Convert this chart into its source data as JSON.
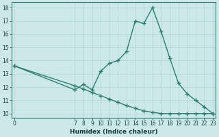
{
  "x_main": [
    0,
    7,
    8,
    9,
    10,
    11,
    12,
    13,
    14,
    15,
    16,
    17,
    18,
    19,
    20,
    21,
    22,
    23
  ],
  "y_main": [
    13.6,
    11.8,
    12.2,
    11.8,
    13.2,
    13.8,
    14.0,
    14.7,
    17.0,
    16.8,
    18.0,
    16.2,
    14.2,
    12.3,
    11.5,
    11.0,
    10.5,
    10.0
  ],
  "x_bg": [
    0,
    7,
    8,
    9,
    10,
    11,
    12,
    13,
    14,
    15,
    16,
    17,
    18,
    19,
    20,
    21,
    22,
    23
  ],
  "y_bg": [
    13.6,
    12.1,
    11.85,
    11.6,
    11.35,
    11.1,
    10.85,
    10.6,
    10.4,
    10.2,
    10.1,
    10.0,
    10.0,
    10.0,
    10.0,
    10.0,
    10.0,
    10.0
  ],
  "line_color": "#2a7d6e",
  "bg_color": "#cce8e8",
  "grid_color": "#aad4d4",
  "xlabel": "Humidex (Indice chaleur)",
  "ylim": [
    9.7,
    18.4
  ],
  "xlim": [
    -0.3,
    23.3
  ],
  "yticks": [
    10,
    11,
    12,
    13,
    14,
    15,
    16,
    17,
    18
  ],
  "xtick_positions": [
    0,
    7,
    8,
    9,
    10,
    11,
    12,
    13,
    14,
    15,
    16,
    17,
    18,
    19,
    20,
    21,
    22,
    23
  ],
  "xtick_labels": [
    "0",
    "7",
    "8",
    "9",
    "10",
    "11",
    "12",
    "13",
    "14",
    "15",
    "16",
    "17",
    "18",
    "19",
    "20",
    "21",
    "22",
    "23"
  ],
  "marker": "+",
  "markersize": 4,
  "markeredgewidth": 1.0,
  "linewidth": 1.0,
  "tick_fontsize": 5.5,
  "xlabel_fontsize": 6.5
}
